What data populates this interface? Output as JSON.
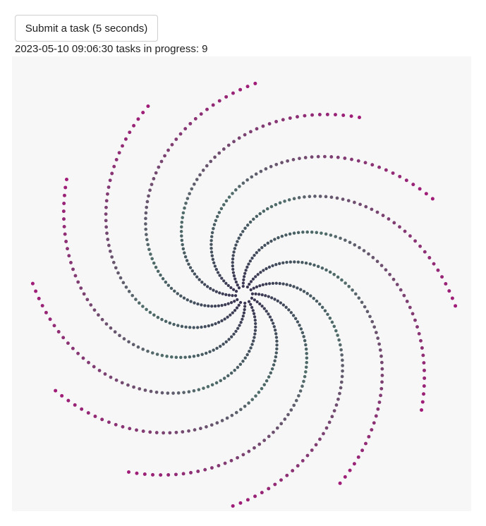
{
  "toolbar": {
    "submit_label": "Submit a task (5 seconds)"
  },
  "status": {
    "text": "2023-05-10 09:06:30 tasks in progress: 9"
  },
  "spiral": {
    "arm_count": 12,
    "dots_per_arm": 64,
    "colors": {
      "inner": "#3a3552",
      "middle": "#4f6e6a",
      "outer": "#a01c78",
      "background": "#f7f7f7"
    }
  }
}
